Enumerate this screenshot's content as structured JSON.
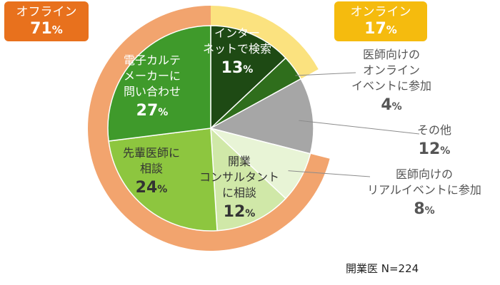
{
  "chart_data": {
    "type": "pie",
    "groups": [
      {
        "label": "オフライン",
        "value": 71,
        "unit": "%",
        "color": "#e8711d",
        "ring_color": "#f2a46e"
      },
      {
        "label": "オンライン",
        "value": 17,
        "unit": "%",
        "color": "#f5bb0e",
        "ring_color": "#fbe27f"
      }
    ],
    "slices": [
      {
        "label": "インターネットで検索",
        "lines": [
          "インター",
          "ネットで検索"
        ],
        "value": 13,
        "unit": "%",
        "color": "#1e4a14",
        "group": "オンライン",
        "label_color": "#ffffff"
      },
      {
        "label": "医師向けのオンラインイベントに参加",
        "lines": [
          "医師向けの",
          "オンライン",
          "イベントに参加"
        ],
        "value": 4,
        "unit": "%",
        "color": "#2f6e1c",
        "group": "オンライン",
        "label_color": "#555555"
      },
      {
        "label": "その他",
        "lines": [
          "その他"
        ],
        "value": 12,
        "unit": "%",
        "color": "#a6a6a6",
        "group": null,
        "label_color": "#555555"
      },
      {
        "label": "医師向けのリアルイベントに参加",
        "lines": [
          "医師向けの",
          "リアルイベントに参加"
        ],
        "value": 8,
        "unit": "%",
        "color": "#e8f4d6",
        "group": "オフライン",
        "label_color": "#555555"
      },
      {
        "label": "開業コンサルタントに相談",
        "lines": [
          "開業",
          "コンサルタント",
          "に相談"
        ],
        "value": 12,
        "unit": "%",
        "color": "#d0e8a8",
        "group": "オフライン",
        "label_color": "#333333"
      },
      {
        "label": "先輩医師に相談",
        "lines": [
          "先輩医師に",
          "相談"
        ],
        "value": 24,
        "unit": "%",
        "color": "#8dc63f",
        "group": "オフライン",
        "label_color": "#333333"
      },
      {
        "label": "電子カルテメーカーに問い合わせ",
        "lines": [
          "電子カルテ",
          "メーカーに",
          "問い合わせ"
        ],
        "value": 27,
        "unit": "%",
        "color": "#3f9a2b",
        "group": "オフライン",
        "label_color": "#ffffff"
      }
    ],
    "footnote": "開業医 N=224"
  }
}
